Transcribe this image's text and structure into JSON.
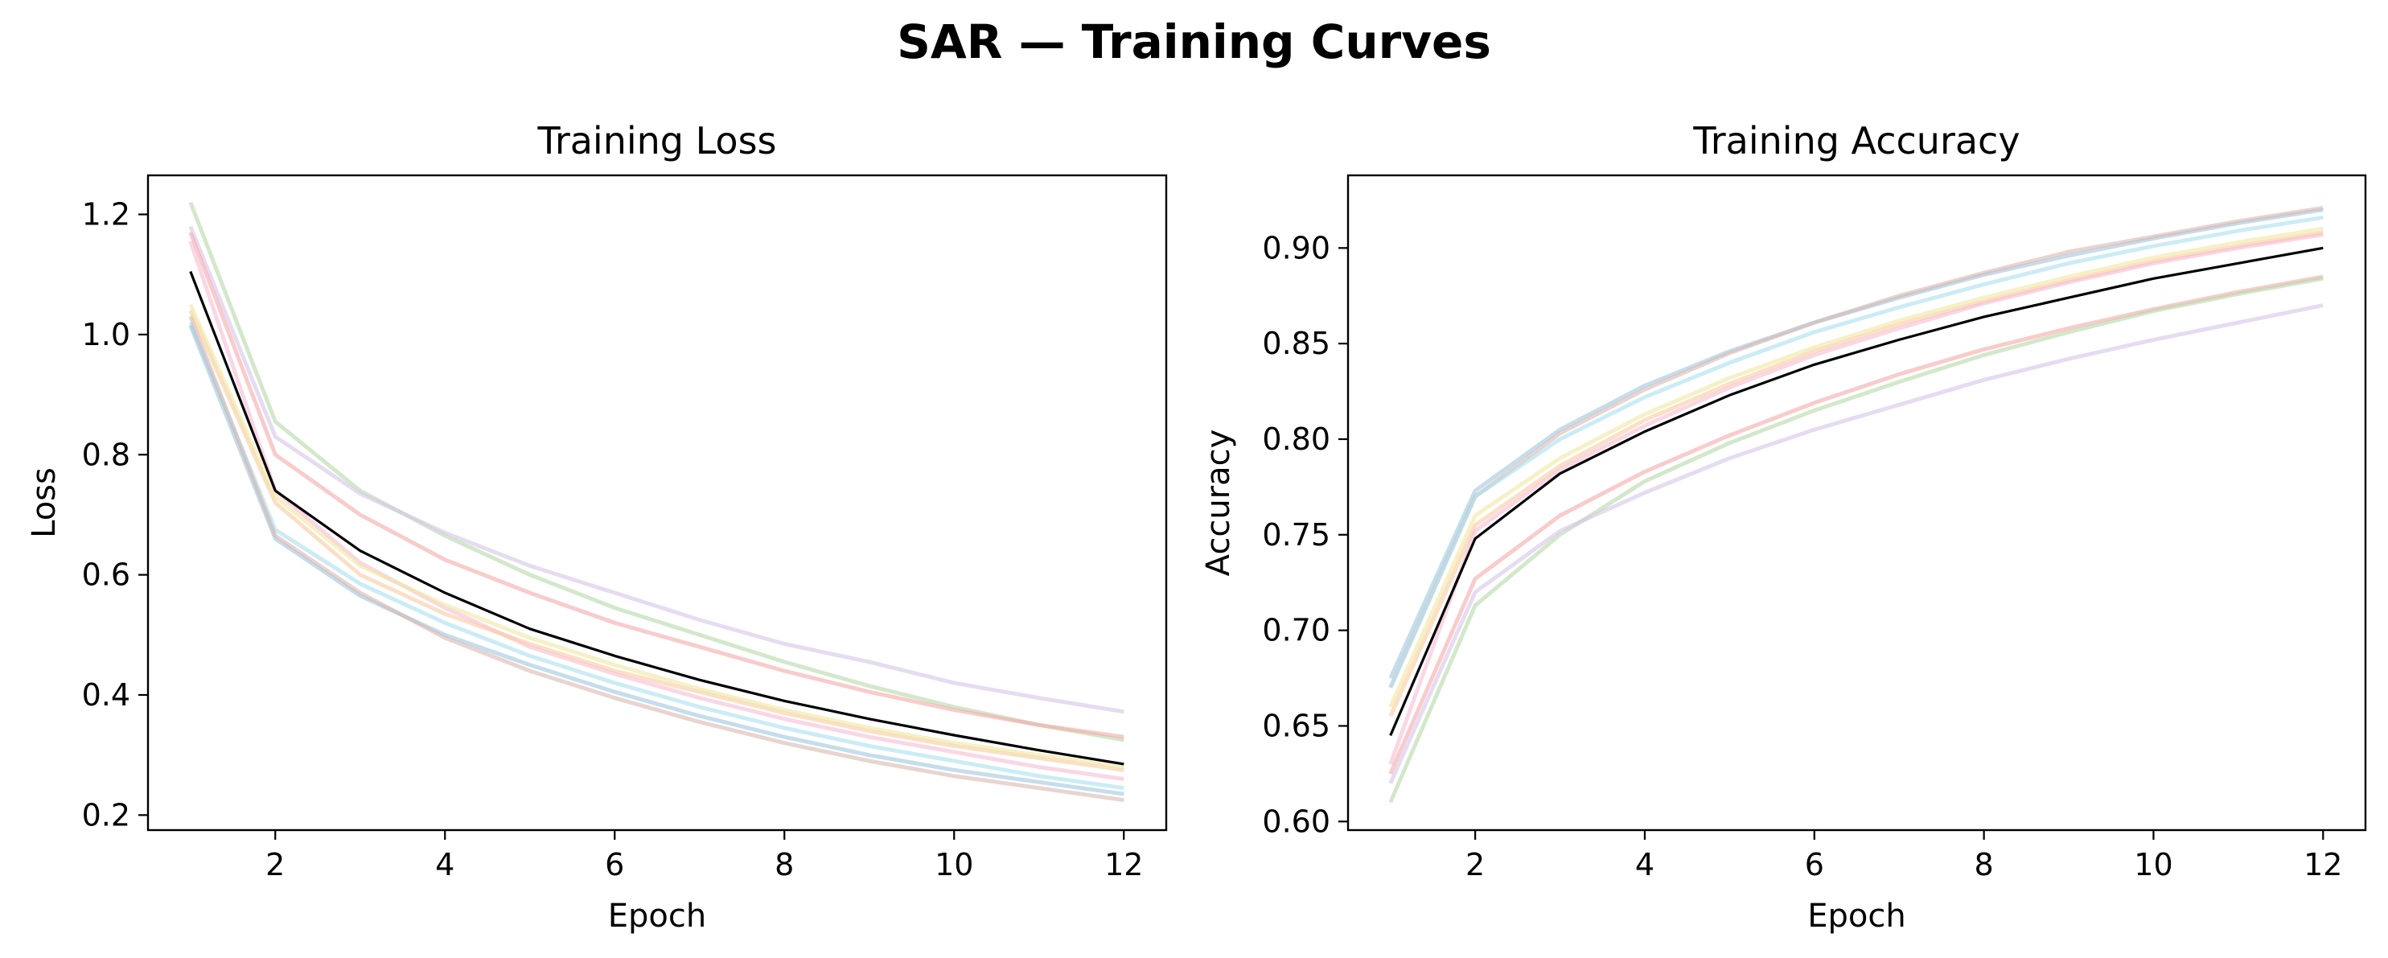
{
  "figure": {
    "title": "SAR — Training Curves"
  },
  "chart_data": [
    {
      "type": "line",
      "title": "Training Loss",
      "xlabel": "Epoch",
      "ylabel": "Loss",
      "xlim": [
        0.5,
        12.5
      ],
      "ylim": [
        0.175,
        1.265
      ],
      "xticks": [
        2,
        4,
        6,
        8,
        10,
        12
      ],
      "yticks": [
        0.2,
        0.4,
        0.6,
        0.8,
        1.0,
        1.2
      ],
      "ytick_labels": [
        "0.2",
        "0.4",
        "0.6",
        "0.8",
        "1.0",
        "1.2"
      ],
      "grid": false,
      "x": [
        1,
        2,
        3,
        4,
        5,
        6,
        7,
        8,
        9,
        10,
        11,
        12
      ],
      "mean_color": "#000000",
      "series": [
        {
          "color": "#b5d8a8",
          "values": [
            1.22,
            0.855,
            0.74,
            0.665,
            0.6,
            0.545,
            0.5,
            0.455,
            0.415,
            0.38,
            0.35,
            0.325
          ]
        },
        {
          "color": "#d6c5e8",
          "values": [
            1.18,
            0.83,
            0.735,
            0.67,
            0.615,
            0.57,
            0.525,
            0.485,
            0.455,
            0.42,
            0.395,
            0.372
          ]
        },
        {
          "color": "#f5a8a8",
          "values": [
            1.17,
            0.8,
            0.7,
            0.625,
            0.57,
            0.52,
            0.48,
            0.44,
            0.405,
            0.375,
            0.35,
            0.33
          ]
        },
        {
          "color": "#f7bcd4",
          "values": [
            1.155,
            0.74,
            0.62,
            0.545,
            0.48,
            0.435,
            0.395,
            0.36,
            0.33,
            0.305,
            0.28,
            0.26
          ]
        },
        {
          "color": "#f8c9a0",
          "values": [
            1.04,
            0.72,
            0.6,
            0.535,
            0.485,
            0.44,
            0.405,
            0.37,
            0.34,
            0.315,
            0.295,
            0.275
          ]
        },
        {
          "color": "#f0e6a0",
          "values": [
            1.05,
            0.73,
            0.615,
            0.55,
            0.495,
            0.45,
            0.41,
            0.375,
            0.345,
            0.32,
            0.3,
            0.28
          ]
        },
        {
          "color": "#a8e0f0",
          "values": [
            1.02,
            0.675,
            0.585,
            0.52,
            0.465,
            0.42,
            0.38,
            0.345,
            0.315,
            0.29,
            0.265,
            0.245
          ]
        },
        {
          "color": "#9ec7e0",
          "values": [
            1.015,
            0.66,
            0.565,
            0.5,
            0.45,
            0.405,
            0.365,
            0.33,
            0.3,
            0.275,
            0.255,
            0.235
          ]
        },
        {
          "color": "#d9b8b0",
          "values": [
            1.03,
            0.665,
            0.57,
            0.495,
            0.44,
            0.395,
            0.355,
            0.32,
            0.29,
            0.265,
            0.245,
            0.225
          ]
        },
        {
          "color": "#000000",
          "values": [
            1.105,
            0.74,
            0.64,
            0.57,
            0.51,
            0.465,
            0.425,
            0.39,
            0.36,
            0.333,
            0.308,
            0.285
          ]
        }
      ]
    },
    {
      "type": "line",
      "title": "Training Accuracy",
      "xlabel": "Epoch",
      "ylabel": "Accuracy",
      "xlim": [
        0.5,
        12.5
      ],
      "ylim": [
        0.5955,
        0.938
      ],
      "xticks": [
        2,
        4,
        6,
        8,
        10,
        12
      ],
      "yticks": [
        0.6,
        0.65,
        0.7,
        0.75,
        0.8,
        0.85,
        0.9
      ],
      "ytick_labels": [
        "0.60",
        "0.65",
        "0.70",
        "0.75",
        "0.80",
        "0.85",
        "0.90"
      ],
      "grid": false,
      "x": [
        1,
        2,
        3,
        4,
        5,
        6,
        7,
        8,
        9,
        10,
        11,
        12
      ],
      "mean_color": "#000000",
      "series": [
        {
          "color": "#9ec7e0",
          "values": [
            0.675,
            0.773,
            0.805,
            0.828,
            0.846,
            0.861,
            0.874,
            0.886,
            0.896,
            0.905,
            0.913,
            0.92
          ]
        },
        {
          "color": "#d9b8b0",
          "values": [
            0.67,
            0.77,
            0.803,
            0.826,
            0.845,
            0.861,
            0.875,
            0.887,
            0.898,
            0.906,
            0.914,
            0.921
          ]
        },
        {
          "color": "#a8e0f0",
          "values": [
            0.67,
            0.77,
            0.8,
            0.822,
            0.84,
            0.856,
            0.869,
            0.881,
            0.892,
            0.901,
            0.909,
            0.916
          ]
        },
        {
          "color": "#f0e6a0",
          "values": [
            0.66,
            0.76,
            0.79,
            0.813,
            0.832,
            0.848,
            0.862,
            0.874,
            0.885,
            0.895,
            0.903,
            0.91
          ]
        },
        {
          "color": "#f8c9a0",
          "values": [
            0.655,
            0.755,
            0.786,
            0.81,
            0.829,
            0.846,
            0.86,
            0.872,
            0.883,
            0.893,
            0.901,
            0.908
          ]
        },
        {
          "color": "#f7bcd4",
          "values": [
            0.63,
            0.752,
            0.784,
            0.807,
            0.827,
            0.844,
            0.858,
            0.871,
            0.882,
            0.892,
            0.9,
            0.907
          ]
        },
        {
          "color": "#f5a8a8",
          "values": [
            0.625,
            0.727,
            0.76,
            0.783,
            0.802,
            0.819,
            0.834,
            0.847,
            0.858,
            0.868,
            0.877,
            0.885
          ]
        },
        {
          "color": "#b5d8a8",
          "values": [
            0.61,
            0.713,
            0.75,
            0.778,
            0.798,
            0.815,
            0.83,
            0.844,
            0.856,
            0.867,
            0.876,
            0.884
          ]
        },
        {
          "color": "#d6c5e8",
          "values": [
            0.62,
            0.72,
            0.752,
            0.772,
            0.79,
            0.805,
            0.818,
            0.831,
            0.842,
            0.852,
            0.861,
            0.87
          ]
        },
        {
          "color": "#000000",
          "values": [
            0.645,
            0.748,
            0.782,
            0.804,
            0.823,
            0.839,
            0.852,
            0.864,
            0.874,
            0.884,
            0.892,
            0.9
          ]
        }
      ]
    }
  ]
}
